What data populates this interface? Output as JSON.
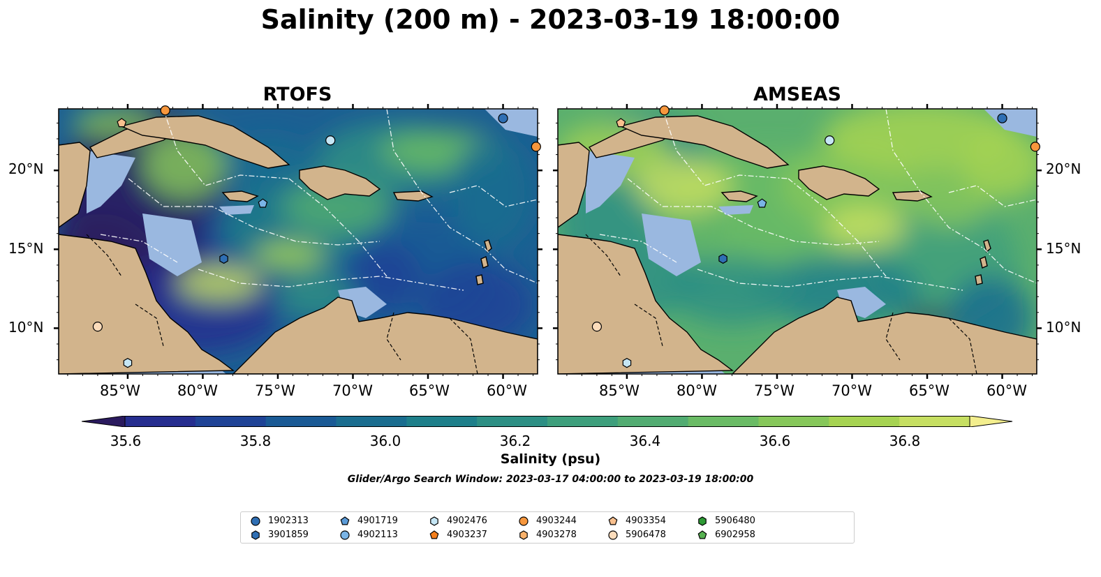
{
  "figure": {
    "title": "Salinity (200 m) - 2023-03-19 18:00:00",
    "panels": [
      {
        "title": "RTOFS",
        "field": "rtofs"
      },
      {
        "title": "AMSEAS",
        "field": "amseas"
      }
    ],
    "lat_labels": [
      "20°N",
      "15°N",
      "10°N"
    ],
    "lon_labels": [
      "85°W",
      "80°W",
      "75°W",
      "70°W",
      "65°W",
      "60°W"
    ],
    "colorbar": {
      "label": "Salinity (psu)",
      "ticks": [
        "35.6",
        "35.8",
        "36.0",
        "36.2",
        "36.4",
        "36.6",
        "36.8"
      ],
      "range": [
        35.55,
        36.9
      ],
      "extend": "both",
      "colors": [
        "#2a1a5e",
        "#262e8f",
        "#1f4396",
        "#1a5a95",
        "#1a6d8f",
        "#1e7f8a",
        "#2d8f84",
        "#3e9f7c",
        "#52ac72",
        "#6abb65",
        "#86c75a",
        "#a6d352",
        "#c6df62",
        "#f3ee8e"
      ]
    },
    "search_window": "Glider/Argo Search Window: 2023-03-17 04:00:00 to 2023-03-19 18:00:00"
  },
  "legend": {
    "items": [
      {
        "id": "1902313",
        "marker": "circle",
        "color": "#2f6fb4"
      },
      {
        "id": "3901859",
        "marker": "hexagon",
        "color": "#2f6fb4"
      },
      {
        "id": "4901719",
        "marker": "pentagon",
        "color": "#5b9bd8"
      },
      {
        "id": "4902113",
        "marker": "circle",
        "color": "#7ab4e6"
      },
      {
        "id": "4902476",
        "marker": "hexagon",
        "color": "#c5e6f5"
      },
      {
        "id": "4903237",
        "marker": "pentagon",
        "color": "#f47f1c"
      },
      {
        "id": "4903244",
        "marker": "circle",
        "color": "#f7973d"
      },
      {
        "id": "4903278",
        "marker": "hexagon",
        "color": "#f9b26b"
      },
      {
        "id": "4903354",
        "marker": "pentagon",
        "color": "#f9c08e"
      },
      {
        "id": "5906478",
        "marker": "circle",
        "color": "#fcdcbb"
      },
      {
        "id": "5906480",
        "marker": "hexagon",
        "color": "#2d9a35"
      },
      {
        "id": "6902958",
        "marker": "pentagon",
        "color": "#56b150"
      }
    ]
  },
  "map_colors": {
    "land": "#d2b48c",
    "shelf_water": "#9ab8e0",
    "rtofs_base": "#1c5f92",
    "amseas_base": "#5aaf6e"
  },
  "platform_markers": [
    {
      "marker": "pentagon",
      "color": "#f9c08e",
      "lon": -85.4,
      "lat": 23.0
    },
    {
      "marker": "circle",
      "color": "#f7973d",
      "lon": -82.5,
      "lat": 23.8
    },
    {
      "marker": "circle",
      "color": "#2f6fb4",
      "lon": -60.0,
      "lat": 23.3
    },
    {
      "marker": "circle",
      "color": "#f7973d",
      "lon": -57.8,
      "lat": 21.5
    },
    {
      "marker": "circle",
      "color": "#c5e6f5",
      "lon": -71.5,
      "lat": 21.9
    },
    {
      "marker": "pentagon",
      "color": "#7ab4e6",
      "lon": -76.0,
      "lat": 17.9
    },
    {
      "marker": "hexagon",
      "color": "#2f6fb4",
      "lon": -78.6,
      "lat": 14.4
    },
    {
      "marker": "circle",
      "color": "#fcdcbb",
      "lon": -87.0,
      "lat": 10.1
    },
    {
      "marker": "hexagon",
      "color": "#c5e6f5",
      "lon": -85.0,
      "lat": 7.8
    }
  ]
}
